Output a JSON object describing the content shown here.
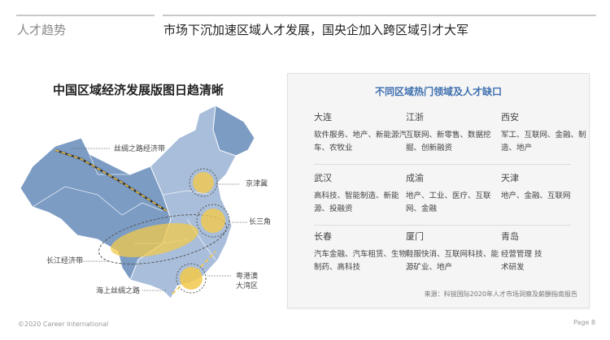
{
  "header": {
    "section": "人才趋势",
    "title": "市场下沉加速区域人才发展，国央企加入跨区域引才大军"
  },
  "map": {
    "title": "中国区域经济发展版图日趋清晰",
    "labels": [
      "丝绸之路经济带",
      "京津冀",
      "长三角",
      "长江经济带",
      "粤港澳\n大湾区",
      "海上丝绸之路"
    ],
    "colors": {
      "land": "#7c9cc4",
      "land_light": "#a9bedb",
      "highlight": "#f2c94c"
    }
  },
  "panel": {
    "title": "不同区域热门领域及人才缺口",
    "regions": [
      {
        "city": "大连",
        "fields": "软件服务、地产、新能源汽车、农牧业"
      },
      {
        "city": "江浙",
        "fields": "互联网、新零售、数据挖掘、创新融资"
      },
      {
        "city": "西安",
        "fields": "军工、互联网、金融、制造、地产"
      },
      {
        "city": "武汉",
        "fields": "高科技、智能制造、新能源、投融资"
      },
      {
        "city": "成渝",
        "fields": "地产、工业、医疗、互联网、金融"
      },
      {
        "city": "天津",
        "fields": "地产、金融、互联网"
      },
      {
        "city": "长春",
        "fields": "汽车金融、汽车租赁、生物制药、高科技"
      },
      {
        "city": "厦门",
        "fields": "鞋服快消、互联网科技、能源矿业、地产"
      },
      {
        "city": "青岛",
        "fields": "经营管理 技术研发"
      }
    ],
    "source": "来源：科锐国际2020年人才市场洞察及薪酬指南报告",
    "accent": "#3f70b0"
  },
  "footer": {
    "copyright": "©2020 Career  International",
    "page": "Page 8"
  }
}
